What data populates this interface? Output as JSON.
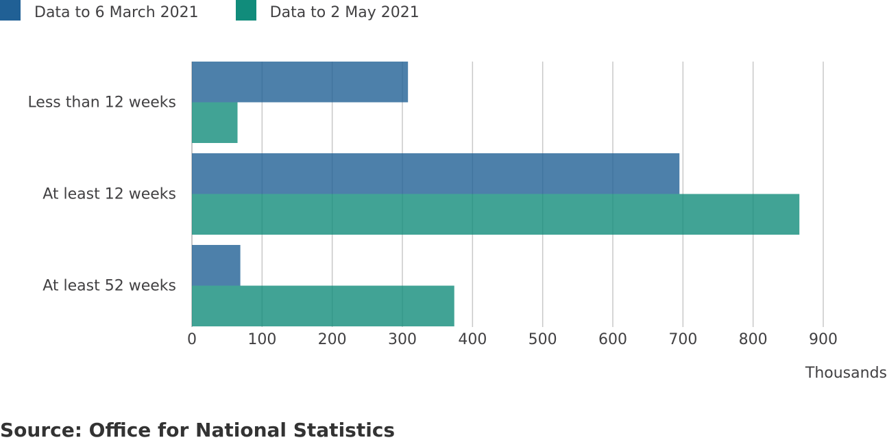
{
  "chart_data": {
    "type": "bar",
    "orientation": "horizontal",
    "categories": [
      "Less than 12 weeks",
      "At least 12 weeks",
      "At least 52 weeks"
    ],
    "series": [
      {
        "name": "Data to 6 March 2021",
        "values": [
          308,
          695,
          69
        ],
        "color": "#206095"
      },
      {
        "name": "Data to 2 May 2021",
        "values": [
          65,
          866,
          374
        ],
        "color": "#118c7b"
      }
    ],
    "xlim": [
      0,
      900
    ],
    "xticks": [
      0,
      100,
      200,
      300,
      400,
      500,
      600,
      700,
      800,
      900
    ],
    "xlabel": "Thousands",
    "grid": true,
    "legend_position": "top-left"
  },
  "source_text": "Source: Office for National Statistics"
}
